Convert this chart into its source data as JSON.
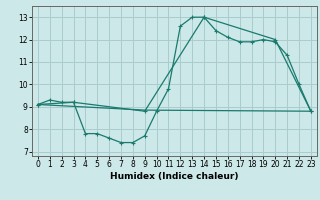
{
  "title": "",
  "xlabel": "Humidex (Indice chaleur)",
  "bg_color": "#cce8e8",
  "grid_color": "#aacccc",
  "line_color": "#1a7a6e",
  "xlim": [
    -0.5,
    23.5
  ],
  "ylim": [
    6.8,
    13.5
  ],
  "yticks": [
    7,
    8,
    9,
    10,
    11,
    12,
    13
  ],
  "xticks": [
    0,
    1,
    2,
    3,
    4,
    5,
    6,
    7,
    8,
    9,
    10,
    11,
    12,
    13,
    14,
    15,
    16,
    17,
    18,
    19,
    20,
    21,
    22,
    23
  ],
  "curve1_x": [
    0,
    1,
    2,
    3,
    4,
    5,
    6,
    7,
    8,
    9,
    10,
    11,
    12,
    13,
    14,
    15,
    16,
    17,
    18,
    19,
    20,
    21,
    22,
    23
  ],
  "curve1_y": [
    9.1,
    9.3,
    9.2,
    9.2,
    7.8,
    7.8,
    7.6,
    7.4,
    7.4,
    7.7,
    8.8,
    9.8,
    12.6,
    13.0,
    13.0,
    12.4,
    12.1,
    11.9,
    11.9,
    12.0,
    11.9,
    11.3,
    10.0,
    8.8
  ],
  "curve2_x": [
    0,
    3,
    9,
    14,
    20,
    23
  ],
  "curve2_y": [
    9.1,
    9.2,
    8.8,
    13.0,
    12.0,
    8.8
  ],
  "curve3_x": [
    0,
    9,
    23
  ],
  "curve3_y": [
    9.1,
    8.85,
    8.8
  ]
}
